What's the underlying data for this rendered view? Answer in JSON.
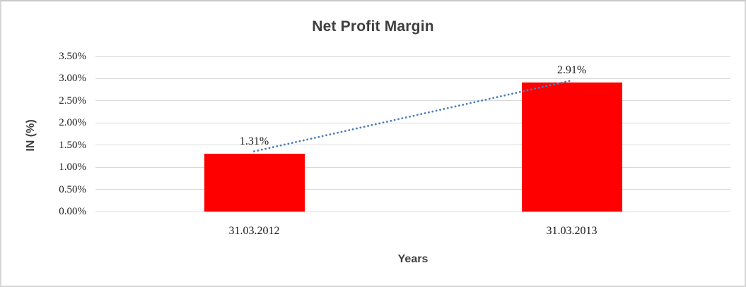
{
  "chart_data": {
    "type": "bar",
    "title": "Net Profit Margin",
    "xlabel": "Years",
    "ylabel": "IN (%)",
    "categories": [
      "31.03.2012",
      "31.03.2013"
    ],
    "values": [
      1.31,
      2.91
    ],
    "data_labels": [
      "1.31%",
      "2.91%"
    ],
    "ylim": [
      0,
      3.5
    ],
    "ytick_step": 0.5,
    "ytick_labels": [
      "0.00%",
      "0.50%",
      "1.00%",
      "1.50%",
      "2.00%",
      "2.50%",
      "3.00%",
      "3.50%"
    ],
    "grid": true,
    "legend_position": "none",
    "bar_color": "#ff0000",
    "gridline_color": "#d9d9d9",
    "trendline": {
      "type": "linear",
      "style": "dotted",
      "color": "#4a7ebb"
    }
  }
}
